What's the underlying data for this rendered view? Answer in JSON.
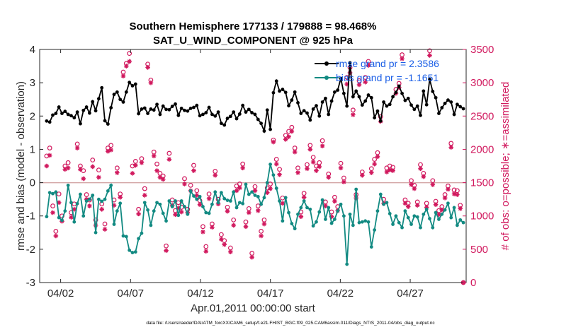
{
  "chart_data": {
    "type": "line",
    "title_line1": "Southern Hemisphere 177133 / 179888 = 98.468%",
    "title_line2": "SAT_U_WIND_COMPONENT @ 925 hPa",
    "xlabel": "Apr.01,2011 00:00:00 start",
    "ylabel": "rmse and bias (model - observation)",
    "y2label": "# of obs: o=possible; ∗=assimilated",
    "footnote": "data file: /Users/raeder/DAI/ATM_forcXX/CAM6_setup/f.e21.FHIST_BGC.f09_025.CAM6assim.011/Diags_NTrS_2011-04/obs_diag_output.nc",
    "x_range_days": [
      0.5,
      31
    ],
    "ylim": [
      -3,
      4
    ],
    "y2lim": [
      0,
      3500
    ],
    "x_ticks": [
      {
        "day": 2,
        "label": "04/02"
      },
      {
        "day": 7,
        "label": "04/07"
      },
      {
        "day": 12,
        "label": "04/12"
      },
      {
        "day": 17,
        "label": "04/17"
      },
      {
        "day": 22,
        "label": "04/22"
      },
      {
        "day": 27,
        "label": "04/27"
      }
    ],
    "y_ticks": [
      "-3",
      "-2",
      "-1",
      "0",
      "1",
      "2",
      "3",
      "4"
    ],
    "y2_ticks": [
      "0",
      "500",
      "1000",
      "1500",
      "2000",
      "2500",
      "3000",
      "3500"
    ],
    "legend": [
      {
        "label": "rmse grand pr = 2.3586",
        "color": "#000000"
      },
      {
        "label": "bias grand pr = -1.1651",
        "color": "#128a82"
      }
    ],
    "colors": {
      "rmse": "#000000",
      "bias": "#128a82",
      "obs": "#d1195e",
      "zero_line": "#d4a6a6",
      "legend_text": "#1a5ee6"
    },
    "series": [
      {
        "name": "rmse",
        "values": [
          1.85,
          1.82,
          2.03,
          2.08,
          2.27,
          2.08,
          2.14,
          2.05,
          2.01,
          1.95,
          2.12,
          1.77,
          2.17,
          2.27,
          2.09,
          2.43,
          2.16,
          2.52,
          2.85,
          1.86,
          1.76,
          2.25,
          2.65,
          2.72,
          2.5,
          2.42,
          2.72,
          3.01,
          2.91,
          2.96,
          2.07,
          2.21,
          2.24,
          2.08,
          2.21,
          2.18,
          2.35,
          2.05,
          2.3,
          2.2,
          2.19,
          2.29,
          2.36,
          2.02,
          2.23,
          2.17,
          2.15,
          2.23,
          2.26,
          2.32,
          2.01,
          2.05,
          2.1,
          2.26,
          2.05,
          2.0,
          2.12,
          1.78,
          1.73,
          1.93,
          1.99,
          2.12,
          1.92,
          2.06,
          2.32,
          2.12,
          2.2,
          2.1,
          2.05,
          1.9,
          1.78,
          1.55,
          2.18,
          1.6,
          2.7,
          3.05,
          2.75,
          2.8,
          2.71,
          2.31,
          2.48,
          2.72,
          2.4,
          2.08,
          2.16,
          2.09,
          1.88,
          2.21,
          2.31,
          2.0,
          2.42,
          2.53,
          2.05,
          2.45,
          2.72,
          2.78,
          3.13,
          2.68,
          2.3,
          3.6,
          2.58,
          2.75,
          2.58,
          2.33,
          2.45,
          2.63,
          2.55,
          1.95,
          2.15,
          1.85,
          2.42,
          2.3,
          2.35,
          2.58,
          2.71,
          2.9,
          2.68,
          2.47,
          2.53,
          2.33,
          2.2,
          2.3,
          2.02,
          2.75,
          2.34,
          3.1,
          2.74,
          2.55,
          2.08,
          2.25,
          2.38,
          2.48,
          2.42,
          2.05,
          2.35,
          2.28,
          2.22
        ]
      },
      {
        "name": "bias",
        "values": [
          -1.02,
          -0.3,
          -0.33,
          -0.28,
          -1.05,
          -1.13,
          -0.85,
          -0.08,
          -0.6,
          -1.18,
          -0.63,
          -0.35,
          -1.0,
          -0.55,
          -0.5,
          -0.38,
          -1.5,
          -0.5,
          -0.56,
          -0.5,
          -0.25,
          -0.08,
          -1.25,
          -0.85,
          -0.62,
          -1.6,
          -1.62,
          -2.03,
          -2.1,
          -2.08,
          -1.68,
          -1.52,
          -0.6,
          -0.82,
          -1.28,
          -0.85,
          -0.6,
          -0.65,
          -0.92,
          -1.15,
          -0.55,
          -0.72,
          -0.55,
          -0.98,
          -0.55,
          -0.72,
          -0.95,
          -0.25,
          -0.4,
          -0.5,
          -0.42,
          -0.72,
          -0.9,
          -0.92,
          -0.65,
          -0.28,
          -0.6,
          -0.3,
          -0.48,
          -0.53,
          -0.55,
          -0.28,
          -0.75,
          -0.6,
          -0.63,
          -0.05,
          -0.35,
          -0.28,
          -0.38,
          -0.42,
          -0.65,
          -0.45,
          0.0,
          0.55,
          0.23,
          -0.17,
          -0.55,
          -1.15,
          -0.45,
          -0.9,
          -1.23,
          -1.38,
          -0.95,
          -0.75,
          -0.55,
          -0.75,
          -0.8,
          -1.3,
          -1.18,
          -0.88,
          -0.52,
          -1.1,
          -0.75,
          -1.22,
          -1.1,
          -0.85,
          -0.65,
          -1.0,
          -2.45,
          -0.95,
          -1.28,
          -0.2,
          -1.2,
          -1.18,
          -1.15,
          -1.18,
          -1.93,
          -1.42,
          -0.85,
          -0.35,
          -0.65,
          -0.6,
          -0.93,
          -1.25,
          -1.0,
          -1.2,
          -1.35,
          -0.85,
          -1.05,
          -1.25,
          -1.0,
          -1.03,
          -1.35,
          -0.95,
          -0.8,
          -1.08,
          -1.35,
          -0.9,
          -1.1,
          -0.95,
          -0.82,
          -0.62,
          -1.05,
          -0.75,
          -1.28,
          -1.12,
          -1.2
        ]
      },
      {
        "name": "obs_possible",
        "values": [
          1900,
          2020,
          1150,
          770,
          1330,
          1000,
          1750,
          1800,
          1050,
          1180,
          2080,
          1750,
          1680,
          1320,
          1240,
          1840,
          940,
          1690,
          1180,
          880,
          2020,
          2060,
          1240,
          1720,
          1330,
          3160,
          3290,
          3440,
          1750,
          1820,
          1100,
          1860,
          1410,
          3280,
          3040,
          1960,
          1780,
          1640,
          1600,
          550,
          1940,
          1240,
          1080,
          1200,
          1130,
          1560,
          1100,
          1460,
          1760,
          1380,
          1230,
          840,
          540,
          1330,
          880,
          1670,
          1250,
          720,
          630,
          1130,
          520,
          940,
          1450,
          1480,
          1780,
          910,
          1110,
          440,
          1440,
          1150,
          770,
          940,
          1420,
          1480,
          2140,
          1850,
          1700,
          1270,
          2210,
          2270,
          2330,
          2020,
          1720,
          1060,
          1340,
          1770,
          2060,
          1880,
          1750,
          1800,
          2130,
          1210,
          1630,
          1060,
          1280,
          1140,
          1790,
          1570,
          3080,
          3230,
          2590,
          1320,
          3030,
          1660,
          3080,
          3320,
          1710,
          1850,
          1950,
          2490,
          1250,
          1720,
          1750,
          1730,
          2900,
          2990,
          3420,
          1240,
          1190,
          1530,
          1460,
          1210,
          1770,
          1640,
          1190,
          3480,
          1530,
          1220,
          1080,
          1140,
          1320,
          1450,
          2090,
          1390,
          1380,
          1160,
          0
        ]
      },
      {
        "name": "obs_assimilated",
        "values": [
          1750,
          1910,
          1050,
          700,
          1200,
          920,
          1700,
          1720,
          980,
          1100,
          2020,
          1700,
          1560,
          1250,
          1150,
          1740,
          860,
          1580,
          1100,
          800,
          1970,
          1990,
          1160,
          1650,
          1280,
          3100,
          3250,
          3320,
          1640,
          1760,
          1030,
          1800,
          1310,
          3230,
          3000,
          1900,
          1680,
          1580,
          1550,
          480,
          1850,
          1160,
          1020,
          1120,
          1060,
          1480,
          1050,
          1380,
          1680,
          1310,
          1170,
          760,
          470,
          1260,
          830,
          1610,
          1180,
          650,
          570,
          1070,
          460,
          860,
          1380,
          1420,
          1720,
          840,
          1050,
          380,
          1380,
          1080,
          700,
          880,
          1350,
          1410,
          2110,
          1780,
          1620,
          1190,
          2150,
          2190,
          2270,
          1960,
          1650,
          990,
          1280,
          1710,
          2000,
          1810,
          1680,
          1740,
          2050,
          1150,
          1580,
          990,
          1220,
          1080,
          1720,
          1510,
          2980,
          3150,
          2520,
          1270,
          2970,
          1610,
          3010,
          3260,
          1650,
          1780,
          1890,
          2420,
          1190,
          1660,
          1690,
          1680,
          2840,
          2930,
          3360,
          1190,
          1140,
          1470,
          1410,
          1160,
          1710,
          1590,
          1130,
          3410,
          1470,
          1170,
          1020,
          1090,
          1270,
          1400,
          2030,
          1330,
          1320,
          1110,
          0
        ]
      }
    ]
  }
}
